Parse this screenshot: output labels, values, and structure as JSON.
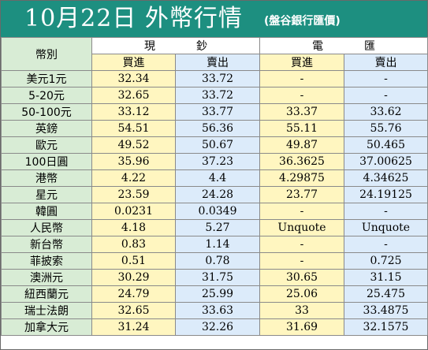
{
  "title": {
    "main": "10月22日 外幣行情",
    "sub": "(盤谷銀行匯價)"
  },
  "headers": {
    "currency": "幣別",
    "cash": "現鈔",
    "wire": "電匯",
    "buy": "買進",
    "sell": "賣出"
  },
  "colors": {
    "title_bar": "#1d8f80",
    "name_column": "#d8ecd5",
    "buy_column": "#fff6c0",
    "sell_column": "#dcebfa"
  },
  "rows": [
    {
      "name": "美元1元",
      "cash_buy": "32.34",
      "cash_sell": "33.72",
      "wire_buy": "-",
      "wire_sell": "-"
    },
    {
      "name": "5-20元",
      "cash_buy": "32.65",
      "cash_sell": "33.72",
      "wire_buy": "-",
      "wire_sell": "-"
    },
    {
      "name": "50-100元",
      "cash_buy": "33.12",
      "cash_sell": "33.77",
      "wire_buy": "33.37",
      "wire_sell": "33.62"
    },
    {
      "name": "英鎊",
      "cash_buy": "54.51",
      "cash_sell": "56.36",
      "wire_buy": "55.11",
      "wire_sell": "55.76"
    },
    {
      "name": "歐元",
      "cash_buy": "49.52",
      "cash_sell": "50.67",
      "wire_buy": "49.87",
      "wire_sell": "50.465"
    },
    {
      "name": "100日圓",
      "cash_buy": "35.96",
      "cash_sell": "37.23",
      "wire_buy": "36.3625",
      "wire_sell": "37.00625"
    },
    {
      "name": "港幣",
      "cash_buy": "4.22",
      "cash_sell": "4.4",
      "wire_buy": "4.29875",
      "wire_sell": "4.34625"
    },
    {
      "name": "星元",
      "cash_buy": "23.59",
      "cash_sell": "24.28",
      "wire_buy": "23.77",
      "wire_sell": "24.19125"
    },
    {
      "name": "韓圓",
      "cash_buy": "0.0231",
      "cash_sell": "0.0349",
      "wire_buy": "-",
      "wire_sell": "-"
    },
    {
      "name": "人民幣",
      "cash_buy": "4.18",
      "cash_sell": "5.27",
      "wire_buy": "Unquote",
      "wire_sell": "Unquote"
    },
    {
      "name": "新台幣",
      "cash_buy": "0.83",
      "cash_sell": "1.14",
      "wire_buy": "-",
      "wire_sell": "-"
    },
    {
      "name": "菲披索",
      "cash_buy": "0.51",
      "cash_sell": "0.78",
      "wire_buy": "-",
      "wire_sell": "0.725"
    },
    {
      "name": "澳洲元",
      "cash_buy": "30.29",
      "cash_sell": "31.75",
      "wire_buy": "30.65",
      "wire_sell": "31.15"
    },
    {
      "name": "紐西蘭元",
      "cash_buy": "24.79",
      "cash_sell": "25.99",
      "wire_buy": "25.06",
      "wire_sell": "25.475"
    },
    {
      "name": "瑞士法朗",
      "cash_buy": "32.65",
      "cash_sell": "33.63",
      "wire_buy": "33",
      "wire_sell": "33.4875"
    },
    {
      "name": "加拿大元",
      "cash_buy": "31.24",
      "cash_sell": "32.26",
      "wire_buy": "31.69",
      "wire_sell": "32.1575"
    }
  ]
}
